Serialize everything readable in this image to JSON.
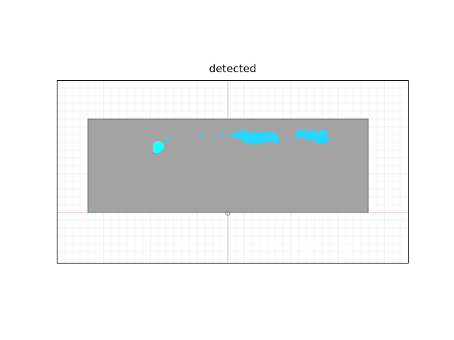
{
  "figure": {
    "title": "detected"
  },
  "viewport": {
    "background_color": "#ffffff",
    "grid_color": "#ebebeb",
    "axis_y_color": "#9fe09f",
    "axis_x_color": "#f2b8b8",
    "frame_color": "#000000"
  },
  "panel": {
    "fill_color": "#a3a3a3",
    "edge_color": "#6e6e6e"
  },
  "detections": {
    "color": "#2ad4ff",
    "bright_color": "#1effff"
  },
  "origin_marker": {
    "icon": "origin-ring-icon",
    "color": "#8c8c8c"
  }
}
